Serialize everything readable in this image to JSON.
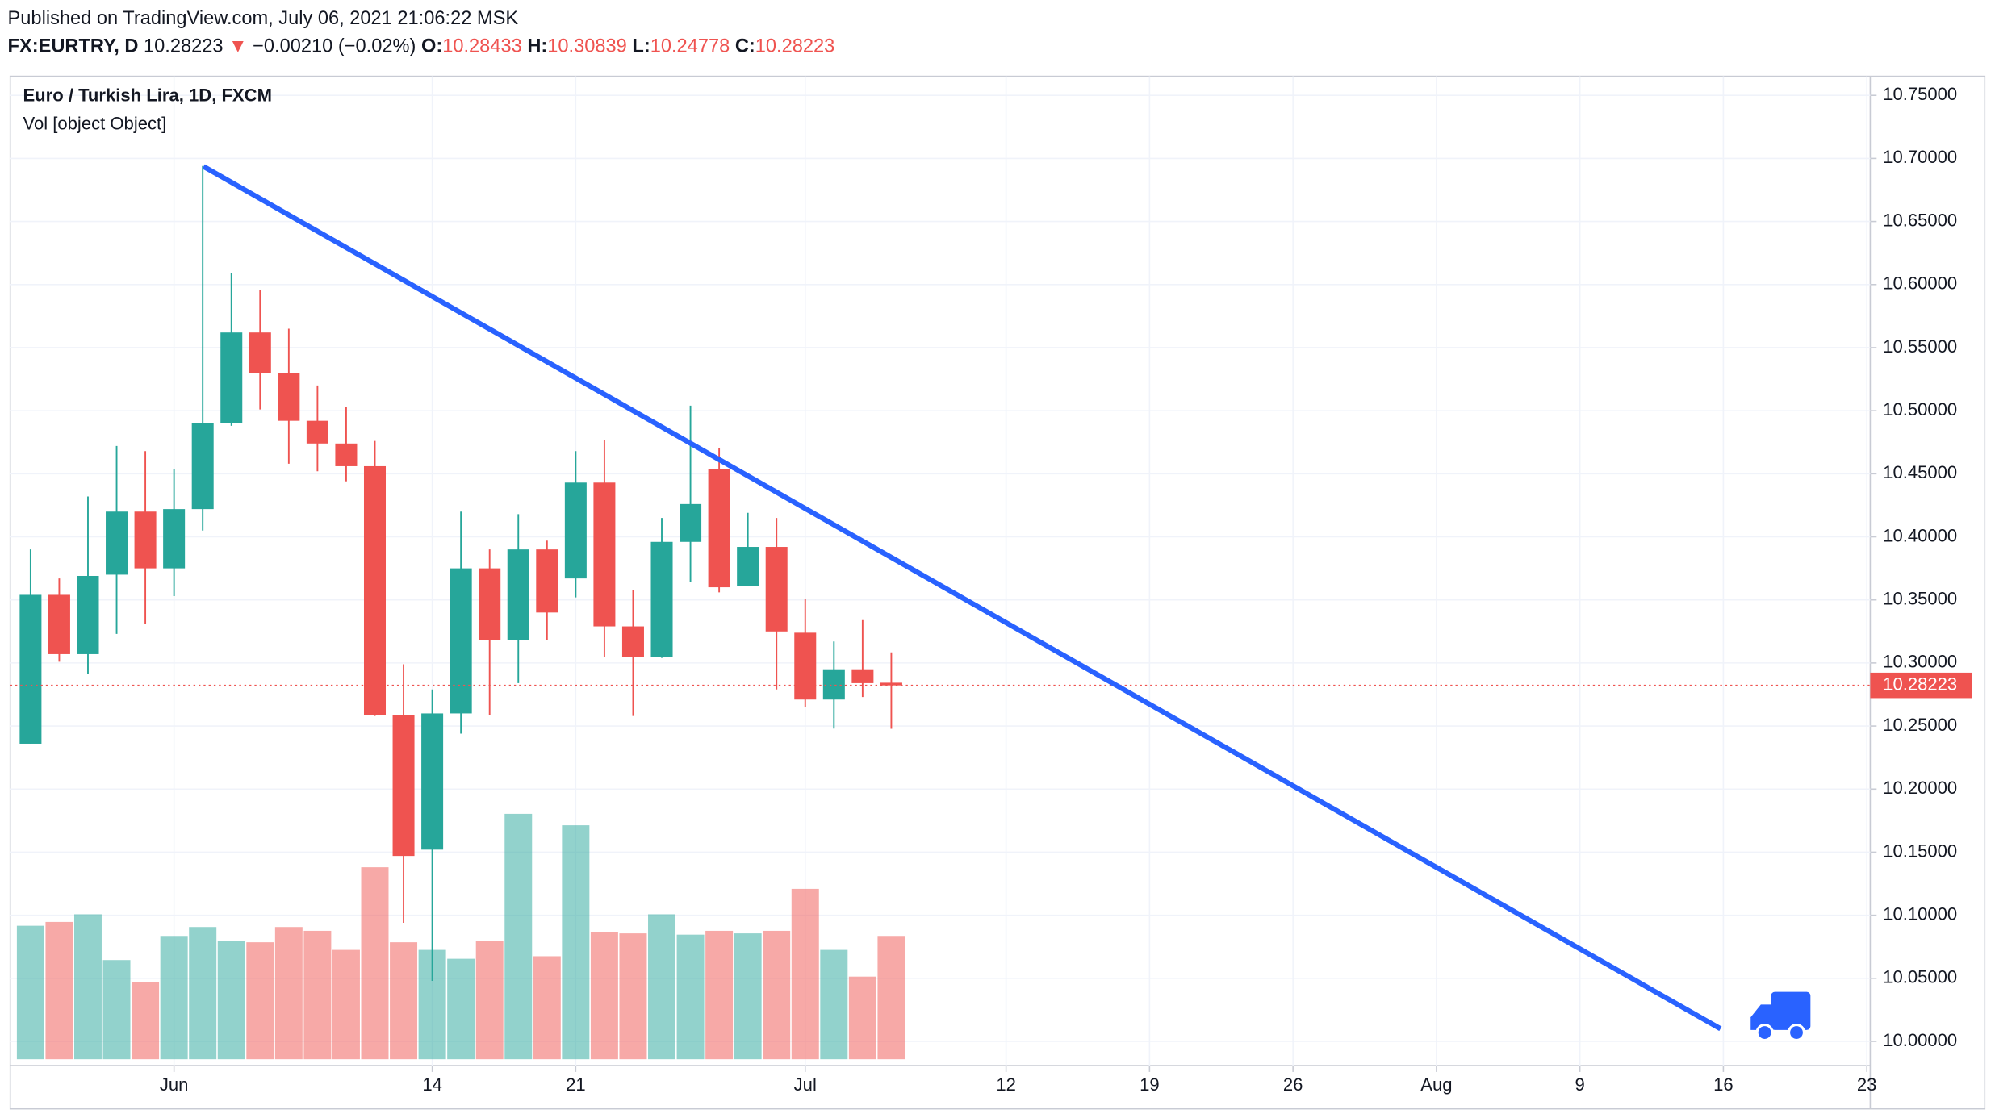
{
  "header": {
    "published": "Published on TradingView.com, July 06, 2021 21:06:22 MSK",
    "symbol": "FX:EURTRY, D",
    "last": "10.28223",
    "arrow": "▼",
    "change": "−0.00210 (−0.02%)",
    "o_label": "O:",
    "o_value": "10.28433",
    "h_label": "H:",
    "h_value": "10.30839",
    "l_label": "L:",
    "l_value": "10.24778",
    "c_label": "C:",
    "c_value": "10.28223"
  },
  "chart_data": {
    "type": "candlestick",
    "title": "Euro / Turkish Lira, 1D, FXCM",
    "subtitle": "Vol [object Object]",
    "up_color": "#26a69a",
    "down_color": "#ef5350",
    "grid": true,
    "open": [
      10.236,
      10.354,
      10.307,
      10.37,
      10.42,
      10.375,
      10.422,
      10.49,
      10.562,
      10.53,
      10.492,
      10.474,
      10.456,
      10.259,
      10.152,
      10.26,
      10.375,
      10.318,
      10.39,
      10.367,
      10.443,
      10.329,
      10.305,
      10.396,
      10.454,
      10.361,
      10.392,
      10.324,
      10.271,
      10.295,
      10.28433
    ],
    "high": [
      10.39,
      10.367,
      10.432,
      10.472,
      10.468,
      10.454,
      10.694,
      10.609,
      10.596,
      10.565,
      10.52,
      10.503,
      10.476,
      10.299,
      10.279,
      10.42,
      10.39,
      10.418,
      10.397,
      10.468,
      10.477,
      10.358,
      10.415,
      10.504,
      10.47,
      10.419,
      10.415,
      10.351,
      10.317,
      10.334,
      10.30839
    ],
    "low": [
      10.236,
      10.301,
      10.291,
      10.323,
      10.331,
      10.353,
      10.405,
      10.488,
      10.501,
      10.458,
      10.452,
      10.444,
      10.258,
      10.094,
      10.048,
      10.244,
      10.259,
      10.284,
      10.318,
      10.352,
      10.305,
      10.258,
      10.304,
      10.364,
      10.356,
      10.361,
      10.279,
      10.265,
      10.248,
      10.273,
      10.24778
    ],
    "close": [
      10.354,
      10.307,
      10.369,
      10.42,
      10.375,
      10.422,
      10.49,
      10.562,
      10.53,
      10.492,
      10.474,
      10.456,
      10.259,
      10.147,
      10.26,
      10.375,
      10.318,
      10.39,
      10.34,
      10.443,
      10.329,
      10.305,
      10.396,
      10.426,
      10.36,
      10.392,
      10.325,
      10.271,
      10.295,
      10.284,
      10.28223
    ],
    "volume": [
      105,
      108,
      114,
      78,
      61,
      97,
      104,
      93,
      92,
      104,
      101,
      86,
      151,
      92,
      86,
      79,
      93,
      193,
      81,
      184,
      100,
      99,
      114,
      98,
      101,
      99,
      101,
      134,
      86,
      65,
      97
    ],
    "xlim": [
      -0.62,
      64.12
    ],
    "xticks": [
      {
        "value": 5,
        "label": "Jun"
      },
      {
        "value": 14,
        "label": "14"
      },
      {
        "value": 19,
        "label": "21"
      },
      {
        "value": 27,
        "label": "Jul"
      },
      {
        "value": 34,
        "label": "12"
      },
      {
        "value": 39,
        "label": "19"
      },
      {
        "value": 44,
        "label": "26"
      },
      {
        "value": 49,
        "label": "Aug"
      },
      {
        "value": 54,
        "label": "9"
      },
      {
        "value": 59,
        "label": "16"
      },
      {
        "value": 64,
        "label": "23"
      }
    ],
    "ylim": [
      9.9828,
      10.7631
    ],
    "yticks": [
      {
        "value": 10.0,
        "label": "10.00000"
      },
      {
        "value": 10.05,
        "label": "10.05000"
      },
      {
        "value": 10.1,
        "label": "10.10000"
      },
      {
        "value": 10.15,
        "label": "10.15000"
      },
      {
        "value": 10.2,
        "label": "10.20000"
      },
      {
        "value": 10.25,
        "label": "10.25000"
      },
      {
        "value": 10.3,
        "label": "10.30000"
      },
      {
        "value": 10.35,
        "label": "10.35000"
      },
      {
        "value": 10.4,
        "label": "10.40000"
      },
      {
        "value": 10.45,
        "label": "10.45000"
      },
      {
        "value": 10.5,
        "label": "10.50000"
      },
      {
        "value": 10.55,
        "label": "10.55000"
      },
      {
        "value": 10.6,
        "label": "10.60000"
      },
      {
        "value": 10.65,
        "label": "10.65000"
      },
      {
        "value": 10.7,
        "label": "10.70000"
      },
      {
        "value": 10.75,
        "label": "10.75000"
      }
    ],
    "trendline": {
      "color": "#2962ff",
      "x": [
        6.03,
        58.9
      ],
      "y": [
        10.6936,
        10.01
      ]
    }
  }
}
